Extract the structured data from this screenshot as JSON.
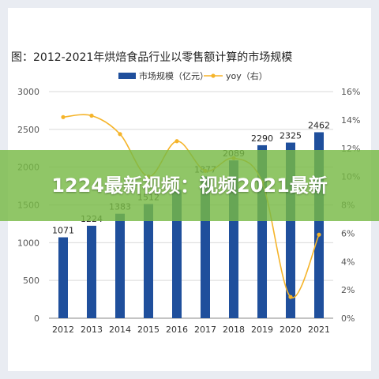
{
  "page": {
    "figure_title": "图：2012-2021年烘焙食品行业以零售额计算的市场规模",
    "overlay_text": "1224最新视频：视频2021最新"
  },
  "colors": {
    "bar": "#1f4f9c",
    "line": "#f5b42a",
    "grid": "#d9d9d9",
    "banner": "#78b946"
  },
  "chart_data": {
    "type": "bar",
    "title": "图：2012-2021年烘焙食品行业以零售额计算的市场规模",
    "categories": [
      "2012",
      "2013",
      "2014",
      "2015",
      "2016",
      "2017",
      "2018",
      "2019",
      "2020",
      "2021"
    ],
    "series": [
      {
        "name": "市场规模（亿元）",
        "type": "bar",
        "axis": "left",
        "values": [
          1071,
          1224,
          1383,
          1512,
          1700,
          1877,
          2089,
          2290,
          2325,
          2462
        ],
        "labels": [
          "1071",
          "1224",
          "1383",
          "1512",
          "",
          "1877",
          "2089",
          "2290",
          "2325",
          "2462"
        ]
      },
      {
        "name": "yoy（右）",
        "type": "line",
        "axis": "right",
        "values": [
          14.2,
          14.3,
          13.0,
          10.0,
          12.5,
          10.4,
          11.3,
          9.6,
          1.5,
          5.9
        ]
      }
    ],
    "ylim_left": [
      0,
      3000
    ],
    "yticks_left": [
      "0",
      "500",
      "1000",
      "1500",
      "2000",
      "2500",
      "3000"
    ],
    "ylim_right": [
      0,
      16
    ],
    "yticks_right": [
      "0%",
      "2%",
      "4%",
      "6%",
      "8%",
      "10%",
      "12%",
      "14%",
      "16%"
    ],
    "grid": true,
    "legend": "top-center"
  }
}
